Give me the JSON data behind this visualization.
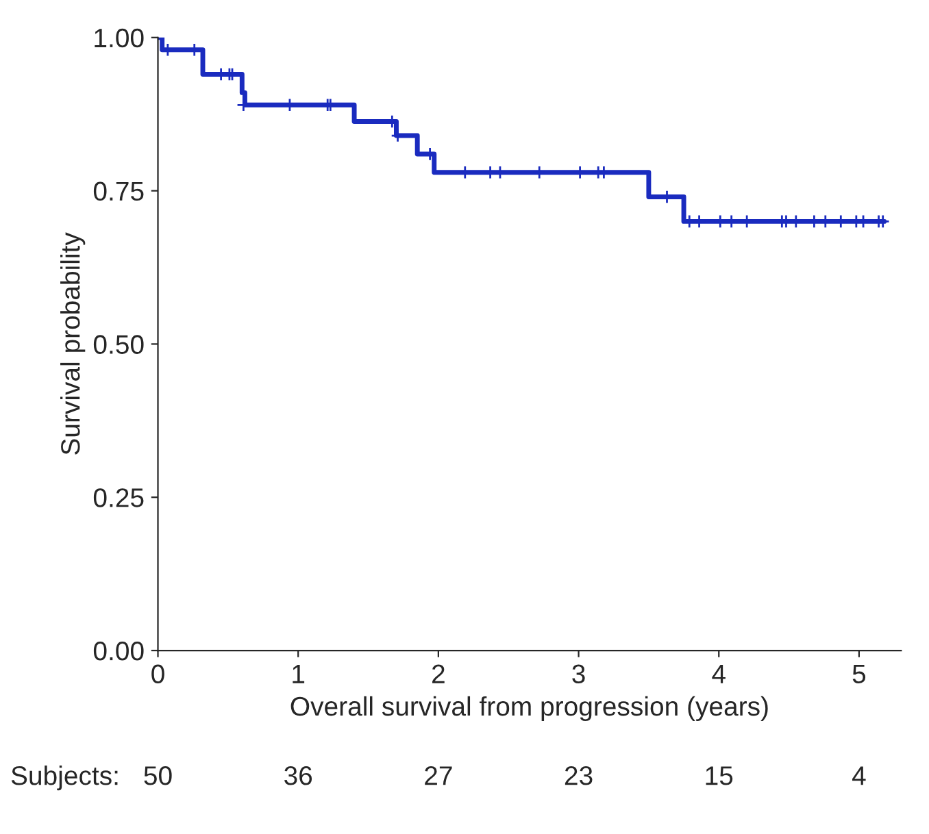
{
  "chart_data": {
    "type": "step",
    "xlabel": "Overall survival from progression (years)",
    "ylabel": "Survival probability",
    "xlim": [
      0,
      5.3
    ],
    "ylim": [
      0,
      1.0
    ],
    "xticks": [
      0,
      1,
      2,
      3,
      4,
      5
    ],
    "yticks": [
      {
        "value": 0,
        "label": "0.00"
      },
      {
        "value": 0.25,
        "label": "0.25"
      },
      {
        "value": 0.5,
        "label": "0.50"
      },
      {
        "value": 0.75,
        "label": "0.75"
      },
      {
        "value": 1.0,
        "label": "1.00"
      }
    ],
    "grid": false,
    "legend": false,
    "line_style": "solid",
    "series": [
      {
        "color": "#1a2bbf",
        "marker": "none",
        "x": [
          0,
          0.03,
          0.32,
          0.6,
          0.62,
          1.4,
          1.7,
          1.85,
          1.97,
          3.5,
          3.75,
          5.18
        ],
        "values": [
          1.0,
          0.98,
          0.94,
          0.91,
          0.89,
          0.863,
          0.84,
          0.81,
          0.78,
          0.74,
          0.7,
          0.7
        ]
      },
      {
        "type": "scatter",
        "color": "#1a2bbf",
        "marker": "cross",
        "x": [
          0.07,
          0.26,
          0.45,
          0.51,
          0.53,
          0.61,
          0.94,
          1.21,
          1.23,
          1.67,
          1.71,
          1.94,
          2.19,
          2.37,
          2.44,
          2.72,
          3.01,
          3.14,
          3.18,
          3.63,
          3.79,
          3.86,
          4.01,
          4.09,
          4.2,
          4.45,
          4.48,
          4.55,
          4.68,
          4.76,
          4.87,
          4.98,
          5.03,
          5.14,
          5.17
        ],
        "values": [
          0.98,
          0.98,
          0.94,
          0.94,
          0.94,
          0.89,
          0.89,
          0.89,
          0.89,
          0.863,
          0.84,
          0.81,
          0.78,
          0.78,
          0.78,
          0.78,
          0.78,
          0.78,
          0.78,
          0.74,
          0.7,
          0.7,
          0.7,
          0.7,
          0.7,
          0.7,
          0.7,
          0.7,
          0.7,
          0.7,
          0.7,
          0.7,
          0.7,
          0.7,
          0.7
        ]
      }
    ],
    "annotations": [
      "Subjects:",
      "50",
      "36",
      "27",
      "23",
      "15",
      "4"
    ]
  }
}
